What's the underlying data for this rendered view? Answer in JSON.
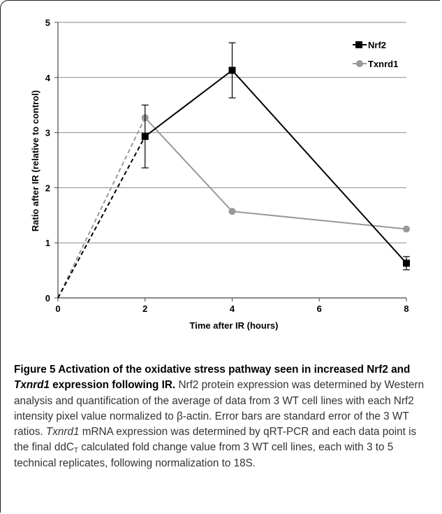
{
  "chart_data": {
    "type": "line",
    "xlabel": "Time after IR (hours)",
    "ylabel": "Ratio after IR (relative to control)",
    "xlim": [
      0,
      8
    ],
    "ylim": [
      0,
      5
    ],
    "xticks": [
      0,
      2,
      4,
      6,
      8
    ],
    "yticks": [
      0,
      1,
      2,
      3,
      4,
      5
    ],
    "grid": "horizontal",
    "legend_position": "top-right",
    "series": [
      {
        "name": "Nrf2",
        "color": "#000000",
        "marker": "square",
        "x": [
          0,
          2,
          4,
          8
        ],
        "y": [
          0,
          2.93,
          4.13,
          0.63
        ],
        "error": [
          0,
          0.57,
          0.5,
          0.12
        ],
        "dashed_first_segment": true
      },
      {
        "name": "Txnrd1",
        "color": "#999999",
        "marker": "circle",
        "x": [
          0,
          2,
          4,
          8
        ],
        "y": [
          0,
          3.27,
          1.57,
          1.25
        ],
        "dashed_first_segment": true
      }
    ]
  },
  "caption": {
    "label": "Figure 5",
    "title_part1": "Activation of the oxidative stress pathway seen in increased Nrf2 and",
    "title_gene": "Txnrd1",
    "title_part2": "expression following IR.",
    "body_part1": "Nrf2 protein expression was determined by Western analysis and quantification of the average of data from 3 WT cell lines with each Nrf2 intensity pixel value normalized to β-actin. Error bars are standard error of the 3 WT ratios.",
    "body_gene": "Txnrd1",
    "body_part2": "mRNA expression was determined by qRT-PCR and each data point is the final ddC",
    "body_sub": "T",
    "body_part3": "calculated fold change value from 3 WT cell lines, each with 3 to 5 technical replicates, following normalization to 18S."
  }
}
